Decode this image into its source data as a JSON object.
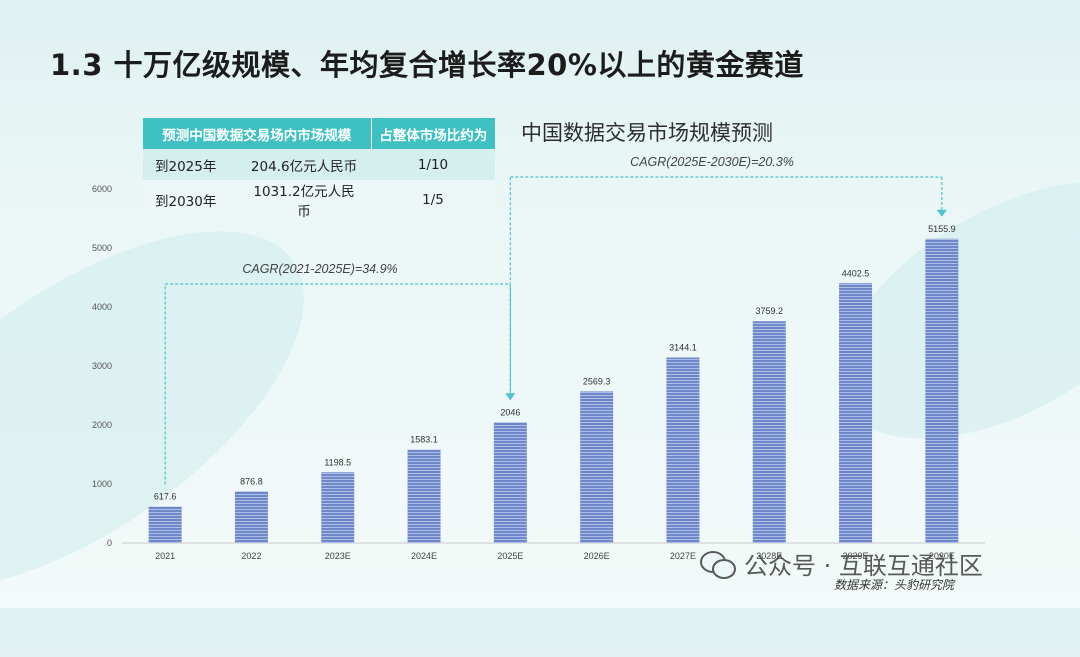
{
  "page": {
    "title": "1.3 十万亿级规模、年均复合增长率20%以上的黄金赛道",
    "watermark": "公众号 · 互联互通社区",
    "source": "数据来源：头豹研究院"
  },
  "table": {
    "headers": [
      "预测中国数据交易场内市场规模",
      "占整体市场比约为"
    ],
    "rows": [
      {
        "year": "到2025年",
        "value": "204.6亿元人民币",
        "share": "1/10"
      },
      {
        "year": "到2030年",
        "value": "1031.2亿元人民币",
        "share": "1/5"
      }
    ]
  },
  "colors": {
    "bar": "#6f88c9",
    "bar_stripe": "#aebee6",
    "table_header": "#3fc1c1",
    "cagr_line": "#4cc3c7"
  },
  "chart_data": {
    "type": "bar",
    "title": "中国数据交易市场规模预测",
    "categories": [
      "2021",
      "2022",
      "2023E",
      "2024E",
      "2025E",
      "2026E",
      "2027E",
      "2028E",
      "2029E",
      "2030E"
    ],
    "values": [
      617.6,
      876.8,
      1198.5,
      1583.1,
      2046,
      2569.3,
      3144.1,
      3759.2,
      4402.5,
      5155.9
    ],
    "data_labels": [
      "617.6",
      "876.8",
      "1198.5",
      "1583.1",
      "2046",
      "2569.3",
      "3144.1",
      "3759.2",
      "4402.5",
      "5155.9"
    ],
    "ylim": [
      0,
      6000
    ],
    "yticks": [
      0,
      1000,
      2000,
      3000,
      4000,
      5000,
      6000
    ],
    "grid": false,
    "annotations": [
      {
        "text": "CAGR(2021-2025E)=34.9%",
        "from": "2021",
        "to": "2025E"
      },
      {
        "text": "CAGR(2025E-2030E)=20.3%",
        "from": "2025E",
        "to": "2030E"
      }
    ]
  }
}
